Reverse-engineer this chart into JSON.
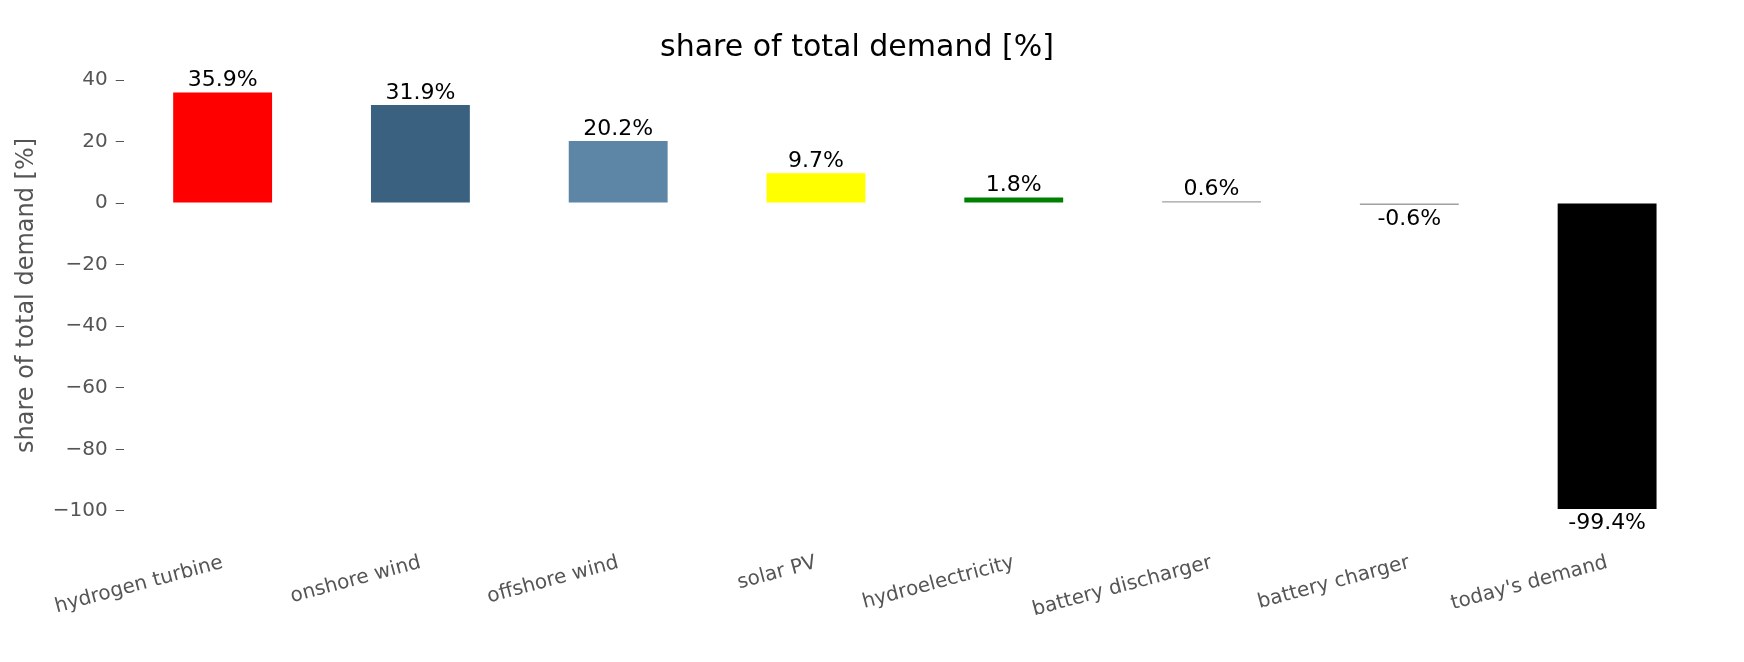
{
  "chart_data": {
    "type": "bar",
    "title": "share of total demand [%]",
    "ylabel": "share of total demand [%]",
    "categories": [
      "hydrogen turbine",
      "onshore wind",
      "offshore wind",
      "solar PV",
      "hydroelectricity",
      "battery discharger",
      "battery charger",
      "today's demand"
    ],
    "values": [
      35.9,
      31.9,
      20.2,
      9.7,
      1.8,
      0.6,
      -0.6,
      -99.4
    ],
    "colors": [
      "#ff0000",
      "#3a6180",
      "#5d85a6",
      "#ffff00",
      "#008000",
      "#a0a0a0",
      "#a0a0a0",
      "#000000"
    ],
    "value_labels": [
      "35.9%",
      "31.9%",
      "20.2%",
      "9.7%",
      "1.8%",
      "0.6%",
      "-0.6%",
      "-99.4%"
    ],
    "ylim": [
      -100,
      40
    ],
    "yticks": [
      {
        "value": -100,
        "label": "−100"
      },
      {
        "value": -80,
        "label": "−80"
      },
      {
        "value": -60,
        "label": "−60"
      },
      {
        "value": -40,
        "label": "−40"
      },
      {
        "value": -20,
        "label": "−20"
      },
      0,
      20,
      40
    ],
    "grid": false,
    "legend": false
  }
}
